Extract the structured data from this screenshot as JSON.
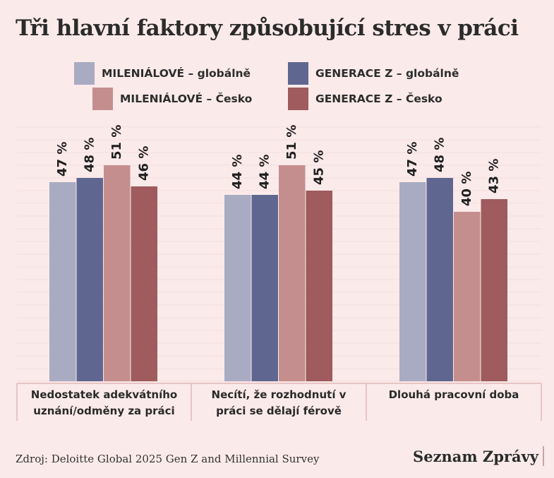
{
  "title": "Tři hlavní faktory způsobující stres v práci",
  "source": "Zdroj: Deloitte Global 2025 Gen Z and Millennial Survey",
  "brand": "Seznam Zprávy",
  "chart_data": {
    "type": "bar",
    "categories": [
      [
        "Nedostatek adekvátního",
        "uznání/odměny za práci"
      ],
      [
        "Necítí, že rozhodnutí v",
        "práci se dělají férově"
      ],
      [
        "Dlouhá pracovní doba"
      ]
    ],
    "series": [
      {
        "name": "MILENIÁLOVÉ – globálně",
        "color": "#a9abc2",
        "values": [
          47,
          44,
          47
        ]
      },
      {
        "name": "GENERACE Z – globálně",
        "color": "#5f6790",
        "values": [
          48,
          44,
          48
        ]
      },
      {
        "name": "MILENIÁLOVÉ – Česko",
        "color": "#c58e8e",
        "values": [
          51,
          51,
          40
        ]
      },
      {
        "name": "GENERACE Z – Česko",
        "color": "#9f5b5d",
        "values": [
          46,
          45,
          43
        ]
      }
    ],
    "value_suffix": " %",
    "ylim": [
      0,
      60
    ],
    "grid": true,
    "legend_position": "top"
  }
}
